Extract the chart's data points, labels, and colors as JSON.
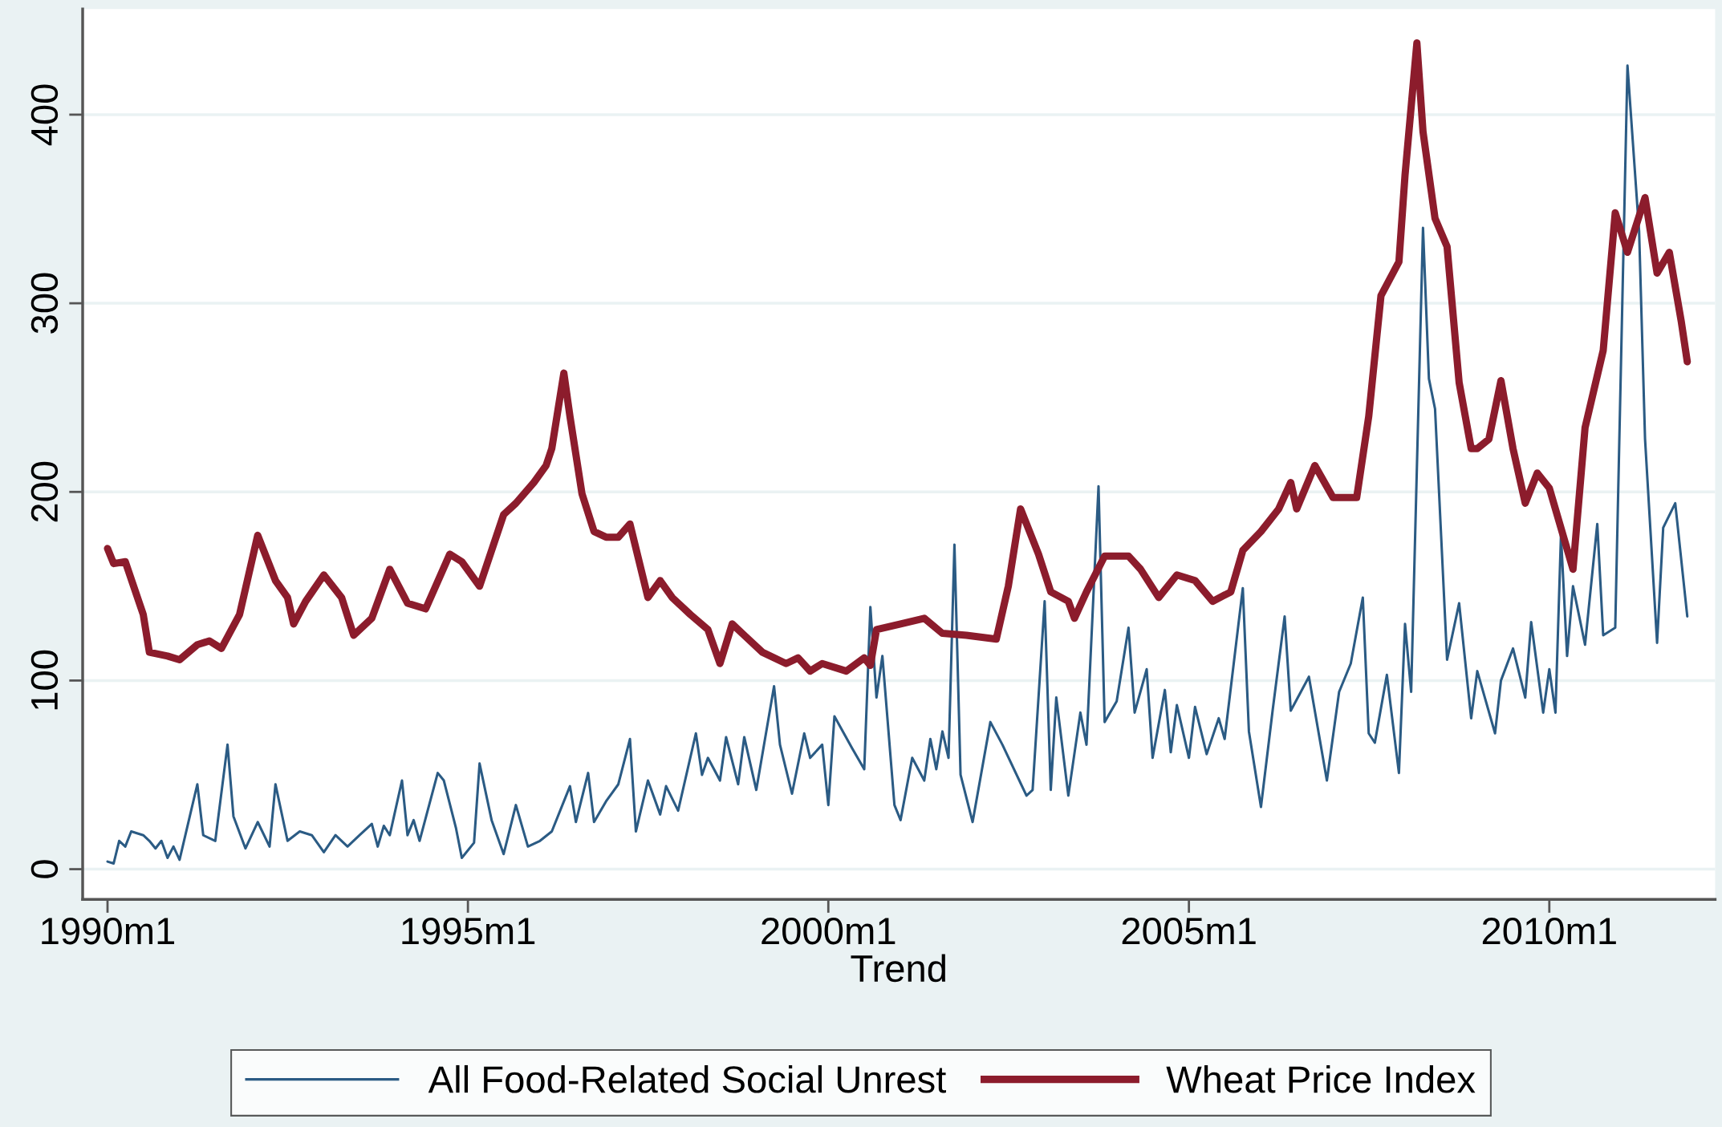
{
  "chart_data": {
    "type": "line",
    "xlabel": "Trend",
    "xlim": [
      "1989-08-28",
      "2012-04-20"
    ],
    "ylim": [
      -16,
      456
    ],
    "xticks": [
      {
        "value": "1990-01",
        "label": "1990m1"
      },
      {
        "value": "1995-01",
        "label": "1995m1"
      },
      {
        "value": "2000-01",
        "label": "2000m1"
      },
      {
        "value": "2005-01",
        "label": "2005m1"
      },
      {
        "value": "2010-01",
        "label": "2010m1"
      }
    ],
    "yticks": [
      0,
      100,
      200,
      300,
      400
    ],
    "grid": "y",
    "legend": "bottom",
    "marker": "none",
    "line_style": "solid",
    "series": [
      {
        "name": "All Food-Related Social Unrest",
        "color": "#2b5b84",
        "x": [
          "1990-01",
          "1990-02",
          "1990-03",
          "1990-04",
          "1990-05",
          "1990-07",
          "1990-08",
          "1990-09",
          "1990-10",
          "1990-11",
          "1990-12",
          "1991-01",
          "1991-04",
          "1991-05",
          "1991-07",
          "1991-09",
          "1991-10",
          "1991-12",
          "1992-02",
          "1992-04",
          "1992-05",
          "1992-07",
          "1992-09",
          "1992-11",
          "1993-01",
          "1993-03",
          "1993-05",
          "1993-07",
          "1993-09",
          "1993-10",
          "1993-11",
          "1993-12",
          "1994-02",
          "1994-03",
          "1994-04",
          "1994-05",
          "1994-08",
          "1994-09",
          "1994-11",
          "1994-12",
          "1995-02",
          "1995-03",
          "1995-05",
          "1995-07",
          "1995-09",
          "1995-11",
          "1996-01",
          "1996-03",
          "1996-06",
          "1996-07",
          "1996-09",
          "1996-10",
          "1996-12",
          "1997-02",
          "1997-04",
          "1997-05",
          "1997-07",
          "1997-09",
          "1997-10",
          "1997-12",
          "1998-03",
          "1998-04",
          "1998-05",
          "1998-07",
          "1998-08",
          "1998-10",
          "1998-11",
          "1999-01",
          "1999-04",
          "1999-05",
          "1999-07",
          "1999-09",
          "1999-10",
          "1999-12",
          "2000-01",
          "2000-02",
          "2000-05",
          "2000-07",
          "2000-08",
          "2000-09",
          "2000-10",
          "2000-12",
          "2001-01",
          "2001-03",
          "2001-05",
          "2001-06",
          "2001-07",
          "2001-08",
          "2001-09",
          "2001-10",
          "2001-11",
          "2002-01",
          "2002-04",
          "2002-06",
          "2002-10",
          "2002-11",
          "2003-01",
          "2003-02",
          "2003-03",
          "2003-05",
          "2003-07",
          "2003-08",
          "2003-10",
          "2003-11",
          "2004-01",
          "2004-03",
          "2004-04",
          "2004-06",
          "2004-07",
          "2004-09",
          "2004-10",
          "2004-11",
          "2005-01",
          "2005-02",
          "2005-04",
          "2005-06",
          "2005-07",
          "2005-10",
          "2005-11",
          "2006-01",
          "2006-03",
          "2006-05",
          "2006-06",
          "2006-09",
          "2006-12",
          "2007-02",
          "2007-04",
          "2007-06",
          "2007-07",
          "2007-08",
          "2007-10",
          "2007-12",
          "2008-01",
          "2008-02",
          "2008-04",
          "2008-05",
          "2008-06",
          "2008-08",
          "2008-10",
          "2008-12",
          "2009-01",
          "2009-04",
          "2009-05",
          "2009-07",
          "2009-09",
          "2009-10",
          "2009-12",
          "2010-01",
          "2010-02",
          "2010-03",
          "2010-04",
          "2010-05",
          "2010-07",
          "2010-09",
          "2010-10",
          "2010-12",
          "2011-02",
          "2011-04",
          "2011-05",
          "2011-07",
          "2011-08",
          "2011-10",
          "2011-12"
        ],
        "values": [
          4,
          3,
          15,
          12,
          20,
          18,
          15,
          11,
          15,
          6,
          12,
          5,
          45,
          18,
          15,
          66,
          28,
          11,
          25,
          12,
          45,
          15,
          20,
          18,
          9,
          18,
          12,
          18,
          24,
          12,
          23,
          18,
          47,
          18,
          26,
          15,
          51,
          47,
          22,
          6,
          14,
          56,
          26,
          8,
          34,
          12,
          15,
          20,
          44,
          25,
          51,
          25,
          36,
          45,
          69,
          20,
          47,
          29,
          44,
          31,
          72,
          50,
          59,
          47,
          70,
          45,
          70,
          42,
          97,
          66,
          40,
          72,
          59,
          66,
          34,
          81,
          64,
          53,
          139,
          91,
          113,
          34,
          26,
          59,
          47,
          69,
          53,
          73,
          59,
          172,
          50,
          25,
          78,
          66,
          39,
          42,
          142,
          42,
          91,
          39,
          83,
          66,
          203,
          78,
          89,
          128,
          83,
          106,
          59,
          95,
          62,
          87,
          59,
          86,
          61,
          80,
          69,
          149,
          73,
          33,
          84,
          134,
          84,
          102,
          47,
          94,
          109,
          144,
          72,
          67,
          103,
          51,
          130,
          94,
          340,
          260,
          244,
          111,
          141,
          80,
          105,
          72,
          100,
          117,
          91,
          131,
          83,
          106,
          83,
          177,
          113,
          150,
          119,
          183,
          124,
          128,
          426,
          338,
          228,
          120,
          181,
          194,
          134
        ]
      },
      {
        "name": "Wheat Price Index",
        "color": "#8c1c2c",
        "x": [
          "1990-01",
          "1990-02",
          "1990-04",
          "1990-07",
          "1990-08",
          "1990-11",
          "1991-01",
          "1991-04",
          "1991-06",
          "1991-08",
          "1991-11",
          "1992-02",
          "1992-05",
          "1992-07",
          "1992-08",
          "1992-10",
          "1993-01",
          "1993-04",
          "1993-06",
          "1993-09",
          "1993-12",
          "1994-03",
          "1994-06",
          "1994-10",
          "1994-12",
          "1995-03",
          "1995-07",
          "1995-09",
          "1995-12",
          "1996-02",
          "1996-03",
          "1996-05",
          "1996-06",
          "1996-08",
          "1996-10",
          "1996-12",
          "1997-02",
          "1997-04",
          "1997-07",
          "1997-09",
          "1997-11",
          "1998-02",
          "1998-05",
          "1998-07",
          "1998-09",
          "1998-11",
          "1999-02",
          "1999-06",
          "1999-08",
          "1999-10",
          "1999-12",
          "2000-04",
          "2000-07",
          "2000-08",
          "2000-09",
          "2001-01",
          "2001-05",
          "2001-08",
          "2001-12",
          "2002-05",
          "2002-07",
          "2002-09",
          "2002-12",
          "2003-02",
          "2003-05",
          "2003-06",
          "2003-08",
          "2003-11",
          "2004-03",
          "2004-05",
          "2004-08",
          "2004-11",
          "2005-02",
          "2005-05",
          "2005-08",
          "2005-10",
          "2006-01",
          "2006-04",
          "2006-06",
          "2006-07",
          "2006-10",
          "2007-01",
          "2007-05",
          "2007-07",
          "2007-09",
          "2007-12",
          "2008-01",
          "2008-03",
          "2008-04",
          "2008-06",
          "2008-08",
          "2008-10",
          "2008-12",
          "2009-01",
          "2009-03",
          "2009-05",
          "2009-07",
          "2009-09",
          "2009-11",
          "2010-01",
          "2010-05",
          "2010-07",
          "2010-10",
          "2010-12",
          "2011-02",
          "2011-05",
          "2011-07",
          "2011-09",
          "2011-11",
          "2011-12"
        ],
        "values": [
          170,
          162,
          163,
          135,
          115,
          113,
          111,
          119,
          121,
          117,
          135,
          177,
          153,
          144,
          130,
          142,
          156,
          144,
          124,
          133,
          159,
          141,
          138,
          167,
          163,
          150,
          188,
          194,
          205,
          214,
          223,
          263,
          240,
          199,
          179,
          176,
          176,
          183,
          144,
          153,
          144,
          135,
          127,
          109,
          130,
          124,
          115,
          109,
          112,
          105,
          109,
          105,
          112,
          108,
          127,
          130,
          133,
          125,
          124,
          122,
          150,
          191,
          167,
          147,
          142,
          133,
          147,
          166,
          166,
          159,
          144,
          156,
          153,
          142,
          147,
          169,
          179,
          191,
          205,
          191,
          214,
          197,
          197,
          240,
          304,
          322,
          368,
          438,
          391,
          345,
          330,
          258,
          223,
          223,
          228,
          259,
          223,
          194,
          210,
          202,
          159,
          234,
          275,
          348,
          327,
          356,
          316,
          327,
          290,
          269
        ]
      }
    ]
  }
}
